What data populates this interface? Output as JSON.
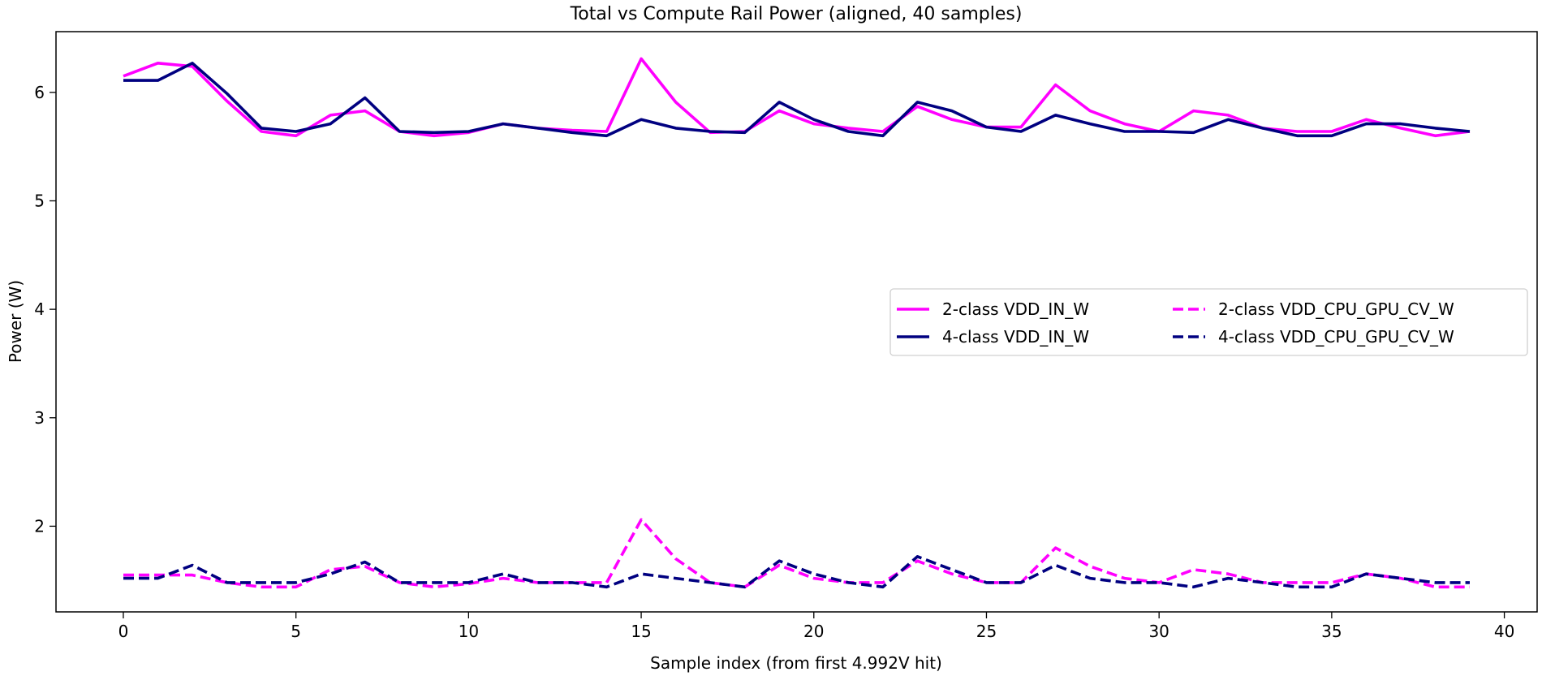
{
  "chart_data": {
    "type": "line",
    "title": "Total vs Compute Rail Power (aligned, 40 samples)",
    "xlabel": "Sample index (from first 4.992V hit)",
    "ylabel": "Power (W)",
    "xlim": [
      -1.95,
      40.95
    ],
    "ylim": [
      1.21,
      6.56
    ],
    "xticks": [
      0,
      5,
      10,
      15,
      20,
      25,
      30,
      35,
      40
    ],
    "yticks": [
      2,
      3,
      4,
      5,
      6
    ],
    "grid": false,
    "legend_position": "center-right",
    "x": [
      0,
      1,
      2,
      3,
      4,
      5,
      6,
      7,
      8,
      9,
      10,
      11,
      12,
      13,
      14,
      15,
      16,
      17,
      18,
      19,
      20,
      21,
      22,
      23,
      24,
      25,
      26,
      27,
      28,
      29,
      30,
      31,
      32,
      33,
      34,
      35,
      36,
      37,
      38,
      39
    ],
    "series": [
      {
        "name": "2-class VDD_IN_W",
        "color": "#ff00ff",
        "dash": "solid",
        "values": [
          6.15,
          6.27,
          6.24,
          5.92,
          5.64,
          5.6,
          5.79,
          5.83,
          5.64,
          5.6,
          5.63,
          5.71,
          5.67,
          5.65,
          5.64,
          6.31,
          5.91,
          5.63,
          5.64,
          5.83,
          5.71,
          5.67,
          5.64,
          5.87,
          5.75,
          5.68,
          5.68,
          6.07,
          5.83,
          5.71,
          5.64,
          5.83,
          5.79,
          5.67,
          5.64,
          5.64,
          5.75,
          5.67,
          5.6,
          5.64
        ]
      },
      {
        "name": "4-class VDD_IN_W",
        "color": "#000080",
        "dash": "solid",
        "values": [
          6.11,
          6.11,
          6.27,
          5.99,
          5.67,
          5.64,
          5.71,
          5.95,
          5.64,
          5.63,
          5.64,
          5.71,
          5.67,
          5.63,
          5.6,
          5.75,
          5.67,
          5.64,
          5.63,
          5.91,
          5.75,
          5.64,
          5.6,
          5.91,
          5.83,
          5.68,
          5.64,
          5.79,
          5.71,
          5.64,
          5.64,
          5.63,
          5.75,
          5.67,
          5.6,
          5.6,
          5.71,
          5.71,
          5.67,
          5.64
        ]
      },
      {
        "name": "2-class VDD_CPU_GPU_CV_W",
        "color": "#ff00ff",
        "dash": "dashed",
        "values": [
          1.55,
          1.55,
          1.55,
          1.48,
          1.44,
          1.44,
          1.6,
          1.63,
          1.48,
          1.44,
          1.47,
          1.52,
          1.48,
          1.48,
          1.48,
          2.06,
          1.7,
          1.48,
          1.44,
          1.64,
          1.52,
          1.48,
          1.48,
          1.68,
          1.56,
          1.48,
          1.48,
          1.8,
          1.63,
          1.52,
          1.48,
          1.6,
          1.56,
          1.48,
          1.48,
          1.48,
          1.56,
          1.52,
          1.44,
          1.44
        ]
      },
      {
        "name": "4-class VDD_CPU_GPU_CV_W",
        "color": "#000080",
        "dash": "dashed",
        "values": [
          1.52,
          1.52,
          1.64,
          1.48,
          1.48,
          1.48,
          1.56,
          1.67,
          1.48,
          1.48,
          1.48,
          1.56,
          1.48,
          1.48,
          1.44,
          1.56,
          1.52,
          1.48,
          1.44,
          1.68,
          1.56,
          1.48,
          1.44,
          1.72,
          1.6,
          1.48,
          1.48,
          1.64,
          1.52,
          1.48,
          1.48,
          1.44,
          1.52,
          1.48,
          1.44,
          1.44,
          1.56,
          1.52,
          1.48,
          1.48
        ]
      }
    ]
  }
}
